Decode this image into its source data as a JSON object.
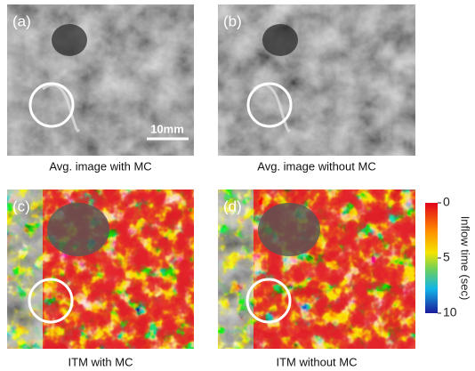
{
  "panels": [
    {
      "label": "(a)",
      "caption": "Avg. image with MC"
    },
    {
      "label": "(b)",
      "caption": "Avg. image without MC"
    },
    {
      "label": "(c)",
      "caption": "ITM with MC"
    },
    {
      "label": "(d)",
      "caption": "ITM without MC"
    }
  ],
  "scale_bar": "10mm",
  "colorbar": {
    "title": "Inflow time (sec)",
    "lim": [
      0,
      10
    ],
    "ticks": [
      0,
      5,
      10
    ]
  }
}
